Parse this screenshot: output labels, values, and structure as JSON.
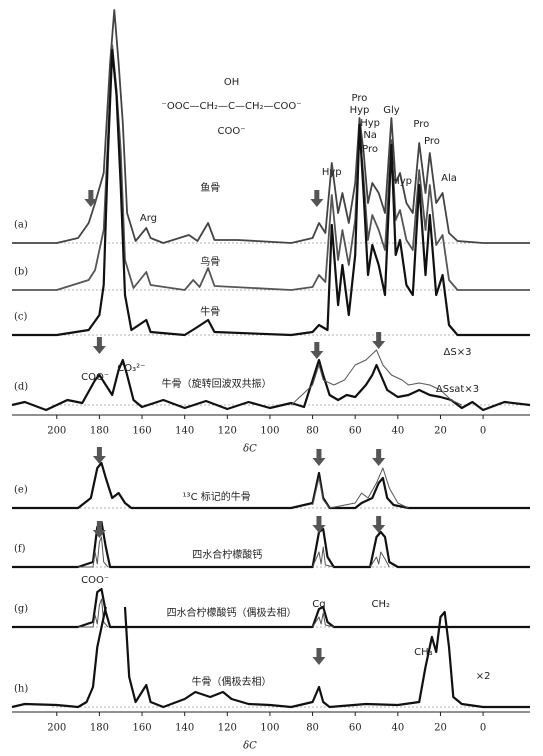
{
  "chart_data": [
    {
      "type": "line",
      "xlabel": "δC",
      "xlim": [
        221,
        -22
      ],
      "xticks": [
        200,
        180,
        160,
        140,
        120,
        100,
        80,
        60,
        40,
        20,
        0
      ],
      "series": [
        {
          "name": "(a)",
          "color": "#444444",
          "linewidth": 1.8,
          "x": [
            221,
            200,
            190,
            185,
            182,
            178,
            175,
            173,
            171,
            169,
            167,
            163,
            158,
            156,
            150,
            138,
            134,
            129,
            126,
            115,
            90,
            80,
            77,
            74,
            71,
            68,
            66,
            63,
            60,
            58,
            56,
            54,
            52,
            49,
            46,
            43,
            41,
            39,
            36,
            33,
            30,
            27,
            25,
            22,
            19,
            16,
            12,
            0,
            -22
          ],
          "values": [
            0,
            0,
            5,
            20,
            40,
            70,
            180,
            233,
            180,
            120,
            30,
            2,
            15,
            5,
            0,
            8,
            2,
            20,
            3,
            3,
            0,
            5,
            20,
            10,
            80,
            30,
            50,
            20,
            60,
            125,
            90,
            40,
            60,
            50,
            30,
            125,
            60,
            70,
            40,
            30,
            100,
            50,
            90,
            40,
            50,
            10,
            2,
            0,
            0
          ]
        },
        {
          "name": "(b)",
          "color": "#555555",
          "linewidth": 1.8,
          "x": [
            221,
            200,
            185,
            182,
            178,
            176,
            174,
            172,
            170,
            168,
            164,
            158,
            156,
            140,
            136,
            133,
            129,
            126,
            90,
            80,
            77,
            74,
            71,
            68,
            66,
            63,
            60,
            58,
            56,
            54,
            52,
            49,
            46,
            43,
            41,
            39,
            36,
            33,
            30,
            27,
            25,
            22,
            19,
            16,
            12,
            -22
          ],
          "values": [
            0,
            0,
            10,
            20,
            60,
            150,
            245,
            200,
            140,
            30,
            2,
            18,
            5,
            0,
            10,
            3,
            22,
            4,
            0,
            3,
            15,
            8,
            95,
            30,
            60,
            25,
            70,
            160,
            110,
            50,
            75,
            60,
            40,
            150,
            70,
            80,
            50,
            40,
            120,
            60,
            105,
            45,
            55,
            10,
            0,
            0
          ]
        },
        {
          "name": "(c)",
          "color": "#111111",
          "linewidth": 2.2,
          "x": [
            221,
            200,
            185,
            180,
            178,
            176,
            174,
            172,
            170,
            168,
            165,
            158,
            156,
            140,
            134,
            129,
            126,
            90,
            80,
            77,
            73,
            71,
            68,
            66,
            63,
            60,
            58,
            56,
            54,
            52,
            49,
            46,
            43,
            41,
            39,
            36,
            33,
            30,
            27,
            25,
            22,
            19,
            16,
            12,
            -22
          ],
          "values": [
            0,
            0,
            5,
            20,
            50,
            180,
            285,
            240,
            150,
            40,
            5,
            15,
            3,
            0,
            8,
            15,
            3,
            0,
            3,
            10,
            5,
            110,
            30,
            70,
            20,
            80,
            210,
            140,
            60,
            90,
            70,
            40,
            190,
            80,
            95,
            50,
            40,
            150,
            60,
            120,
            40,
            60,
            10,
            0,
            0
          ]
        },
        {
          "name": "(d)",
          "color": "#111111",
          "linewidth": 2.2,
          "x": [
            221,
            215,
            205,
            195,
            188,
            182,
            180,
            177,
            174,
            171,
            169,
            167,
            164,
            160,
            150,
            140,
            130,
            120,
            110,
            100,
            90,
            84,
            80,
            77,
            75,
            72,
            68,
            64,
            60,
            55,
            52,
            50,
            48,
            45,
            40,
            35,
            30,
            25,
            20,
            15,
            10,
            5,
            0,
            -10,
            -22
          ],
          "values": [
            0,
            3,
            -5,
            5,
            2,
            25,
            30,
            20,
            10,
            35,
            45,
            30,
            5,
            -2,
            5,
            -3,
            4,
            -4,
            3,
            -3,
            2,
            -2,
            25,
            45,
            30,
            10,
            5,
            10,
            8,
            20,
            30,
            40,
            30,
            15,
            8,
            10,
            15,
            10,
            8,
            5,
            -3,
            3,
            -5,
            3,
            0
          ]
        },
        {
          "color": "#555555",
          "linewidth": 1,
          "x": [
            90,
            80,
            77,
            75,
            70,
            65,
            60,
            55,
            50,
            47,
            43,
            38,
            35,
            30,
            25,
            20,
            15,
            10
          ],
          "values": [
            0,
            20,
            40,
            25,
            20,
            25,
            40,
            45,
            55,
            40,
            30,
            25,
            20,
            22,
            20,
            15,
            5,
            0
          ]
        }
      ],
      "annotations": [
        "Arg",
        "鱼骨",
        "鸟骨",
        "牛骨",
        "Hyp",
        "Pro",
        "Hyp",
        "Hyp",
        "Na",
        "Pro",
        "Gly",
        "Hyp",
        "Pro",
        "Pro",
        "Ala",
        "CO₃²⁻",
        "COO⁻",
        "牛骨（旋转回波双共振）",
        "ΔS×3",
        "ΔSsat×3",
        "OH",
        "⁻OOC—CH₂—C—CH₂—COO⁻",
        "COO⁻"
      ]
    },
    {
      "type": "line",
      "xlabel": "δC",
      "xlim": [
        221,
        -22
      ],
      "xticks": [
        200,
        180,
        160,
        140,
        120,
        100,
        80,
        60,
        40,
        20,
        0
      ],
      "series": [
        {
          "name": "(e)",
          "color": "#111111",
          "linewidth": 2.2,
          "x": [
            221,
            190,
            184,
            181,
            179,
            177,
            174,
            171,
            168,
            165,
            90,
            80,
            77,
            75,
            72,
            60,
            57,
            52,
            49,
            47,
            45,
            42,
            35,
            -22
          ],
          "values": [
            0,
            0,
            10,
            40,
            45,
            30,
            10,
            15,
            5,
            0,
            0,
            5,
            35,
            10,
            0,
            0,
            5,
            10,
            25,
            30,
            10,
            3,
            0,
            0
          ]
        },
        {
          "color": "#555555",
          "linewidth": 1,
          "x": [
            80,
            77,
            75,
            72,
            60,
            57,
            54,
            50,
            47,
            44,
            40,
            35
          ],
          "values": [
            3,
            30,
            8,
            0,
            5,
            15,
            10,
            25,
            40,
            20,
            5,
            0
          ]
        },
        {
          "name": "(f)",
          "color": "#111111",
          "linewidth": 2.2,
          "x": [
            221,
            190,
            183,
            181,
            179,
            177,
            175,
            80,
            77,
            75,
            73,
            70,
            53,
            50,
            48,
            46,
            44,
            40,
            -22
          ],
          "values": [
            0,
            0,
            5,
            40,
            45,
            20,
            0,
            0,
            35,
            38,
            10,
            0,
            0,
            30,
            35,
            30,
            5,
            0,
            0
          ]
        },
        {
          "color": "#555555",
          "linewidth": 1,
          "x": [
            190,
            183,
            182,
            181,
            180,
            179,
            178,
            176,
            120,
            80,
            77,
            76,
            75,
            74,
            70,
            60,
            53,
            50,
            49,
            48,
            46,
            44
          ],
          "values": [
            0,
            0,
            15,
            3,
            25,
            30,
            5,
            0,
            null,
            0,
            15,
            3,
            20,
            2,
            0,
            null,
            0,
            10,
            3,
            15,
            8,
            0
          ]
        },
        {
          "name": "(g)",
          "color": "#111111",
          "linewidth": 2.2,
          "x": [
            221,
            190,
            183,
            181,
            179,
            177,
            175,
            80,
            77,
            75,
            73,
            70,
            -22
          ],
          "values": [
            0,
            0,
            5,
            35,
            38,
            15,
            0,
            0,
            18,
            20,
            5,
            0,
            0
          ]
        },
        {
          "color": "#555555",
          "linewidth": 1,
          "x": [
            190,
            183,
            182,
            181,
            180,
            179,
            178,
            176,
            120,
            80,
            77,
            76,
            75,
            74,
            70
          ],
          "values": [
            0,
            0,
            12,
            3,
            22,
            28,
            5,
            0,
            null,
            0,
            10,
            3,
            14,
            2,
            0
          ]
        },
        {
          "name": "(h)",
          "color": "#111111",
          "linewidth": 2.2,
          "x": [
            221,
            215,
            200,
            190,
            186,
            183,
            181,
            177,
            172,
            168,
            166,
            163,
            158,
            156,
            150,
            140,
            135,
            128,
            122,
            118,
            110,
            100,
            90,
            80,
            77,
            75,
            72,
            55,
            40,
            30,
            27,
            24,
            22,
            20,
            18,
            16,
            14,
            10,
            0,
            -22
          ],
          "values": [
            0,
            3,
            2,
            0,
            5,
            20,
            60,
            100,
            null,
            100,
            30,
            5,
            22,
            5,
            0,
            8,
            15,
            10,
            15,
            8,
            3,
            2,
            0,
            5,
            20,
            5,
            0,
            3,
            2,
            5,
            40,
            70,
            55,
            90,
            95,
            60,
            10,
            3,
            0,
            0
          ]
        }
      ],
      "annotations": [
        "¹³C 标记的牛骨",
        "四水合柠檬酸钙",
        "四水合柠檬酸钙（偶极去相）",
        "牛骨（偶极去相）",
        "COO⁻",
        "Cq",
        "CH₂",
        "CH₃",
        "×2"
      ]
    }
  ]
}
